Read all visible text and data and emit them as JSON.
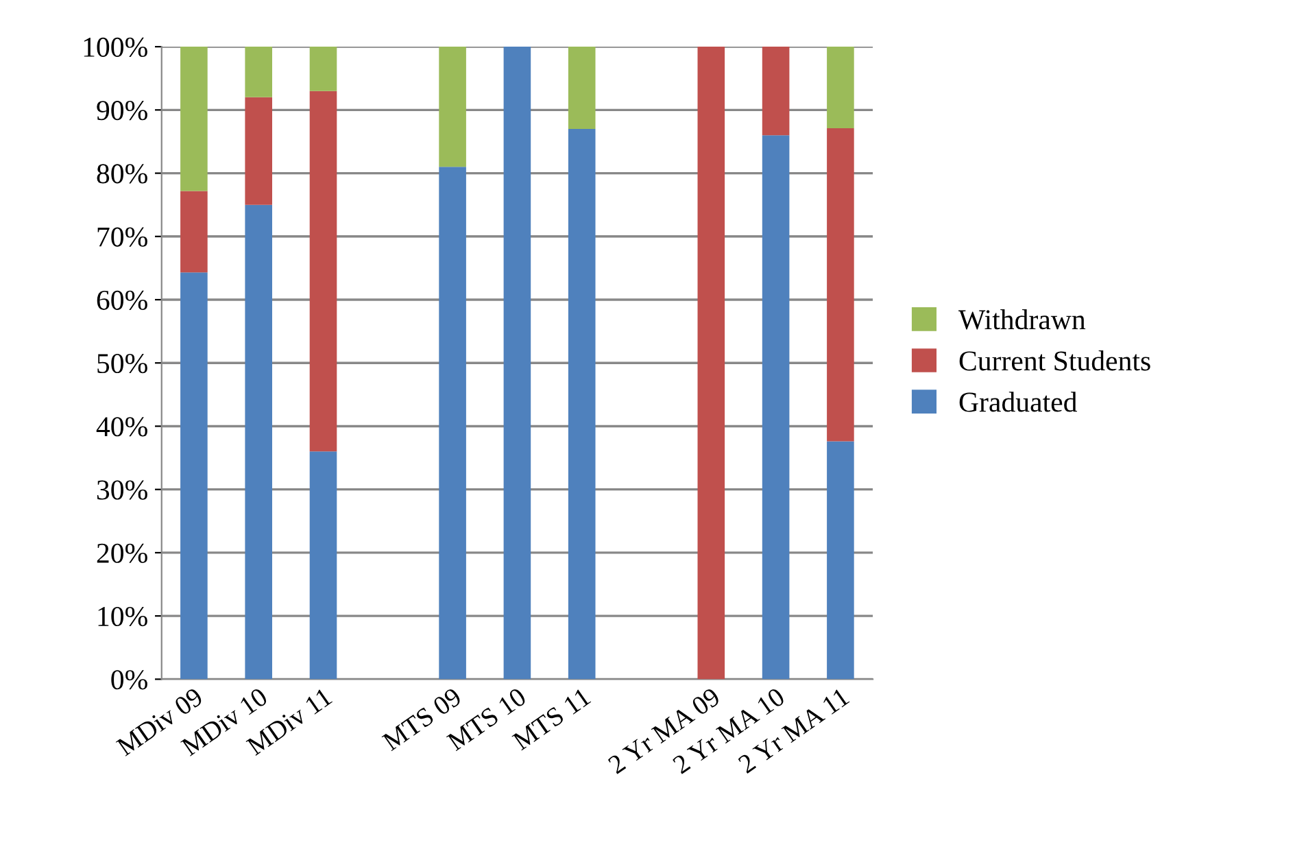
{
  "chart_data": {
    "type": "bar",
    "stacked": true,
    "categories": [
      "MDiv 09",
      "MDiv 10",
      "MDiv 11",
      null,
      "MTS 09",
      "MTS 10",
      "MTS 11",
      null,
      "2 Yr MA 09",
      "2 Yr MA 10",
      "2 Yr MA 11"
    ],
    "series": [
      {
        "name": "Graduated",
        "color": "#4f81bd",
        "values": [
          64.3,
          75,
          36,
          null,
          81,
          100,
          87,
          null,
          null,
          86,
          37.6
        ]
      },
      {
        "name": "Current Students",
        "color": "#c0504d",
        "values": [
          12.9,
          17,
          57,
          null,
          null,
          null,
          null,
          null,
          100,
          14,
          49.5
        ]
      },
      {
        "name": "Withdrawn",
        "color": "#9bbb59",
        "values": [
          22.8,
          8,
          7,
          null,
          19,
          null,
          13,
          null,
          null,
          null,
          12.9
        ]
      }
    ],
    "ylim": [
      0,
      100
    ],
    "yticks": [
      {
        "value": 0,
        "label": "0%"
      },
      {
        "value": 10,
        "label": "10%"
      },
      {
        "value": 20,
        "label": "20%"
      },
      {
        "value": 30,
        "label": "30%"
      },
      {
        "value": 40,
        "label": "40%"
      },
      {
        "value": 50,
        "label": "50%"
      },
      {
        "value": 60,
        "label": "60%"
      },
      {
        "value": 70,
        "label": "70%"
      },
      {
        "value": 80,
        "label": "80%"
      },
      {
        "value": 90,
        "label": "90%"
      },
      {
        "value": 100,
        "label": "100%"
      }
    ],
    "grid": "y",
    "legend": "right"
  }
}
